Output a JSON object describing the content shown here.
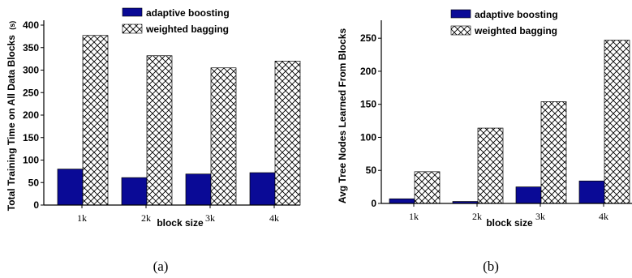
{
  "colors": {
    "boost": "#0a0a96",
    "axis": "#000000"
  },
  "chart_data": [
    {
      "type": "bar",
      "caption": "(a)",
      "categories": [
        "1k",
        "2k",
        "3k",
        "4k"
      ],
      "xlabel": "block size",
      "ylabel": "Total Training Time on All Data Blocks",
      "ylabel_unit": "(s)",
      "ylim": [
        0,
        400
      ],
      "yticks": [
        0,
        50,
        100,
        150,
        200,
        250,
        300,
        350,
        400
      ],
      "legend_position": "top-right",
      "grid": false,
      "series": [
        {
          "name": "adaptive boosting",
          "values": [
            80,
            61,
            69,
            72
          ]
        },
        {
          "name": "weighted bagging",
          "values": [
            377,
            332,
            305,
            320
          ]
        }
      ]
    },
    {
      "type": "bar",
      "caption": "(b)",
      "categories": [
        "1k",
        "2k",
        "3k",
        "4k"
      ],
      "xlabel": "block size",
      "ylabel": "Avg Tree Nodes Learned From Blocks",
      "ylim": [
        0,
        260
      ],
      "yticks": [
        0,
        50,
        100,
        150,
        200,
        250
      ],
      "legend_position": "top-right",
      "grid": false,
      "series": [
        {
          "name": "adaptive boosting",
          "values": [
            7,
            3,
            25,
            34
          ]
        },
        {
          "name": "weighted bagging",
          "values": [
            48,
            114,
            154,
            247
          ]
        }
      ]
    }
  ]
}
